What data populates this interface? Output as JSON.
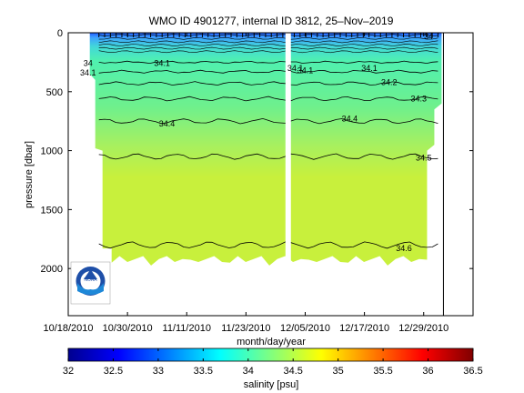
{
  "chart_data": {
    "type": "heatmap",
    "title": "WMO ID 4901277, internal ID 3812, 25–Nov–2019",
    "xlabel": "month/day/year",
    "ylabel": "pressure [dbar]",
    "x_ticks": [
      "10/18/2010",
      "10/30/2010",
      "11/11/2010",
      "11/23/2010",
      "12/05/2010",
      "12/17/2010",
      "12/29/2010"
    ],
    "xlim": [
      "10/18/2010",
      "01/08/2011"
    ],
    "y_ticks": [
      0,
      500,
      1000,
      1500,
      2000
    ],
    "ylim": [
      0,
      2400
    ],
    "y_reversed": true,
    "colorbar": {
      "label": "salinity [psu]",
      "ticks": [
        32,
        32.5,
        33,
        33.5,
        34,
        34.5,
        35,
        35.5,
        36,
        36.5
      ],
      "range": [
        32,
        36.5
      ],
      "colormap": "jet"
    },
    "data_gap": {
      "start": "12/01/2010",
      "end": "12/02/2010"
    },
    "profile_end_date": "01/02/2011",
    "contours": [
      {
        "label": "34",
        "pressure": 250
      },
      {
        "label": "34.1",
        "pressure": 330
      },
      {
        "label": "34.2",
        "pressure": 430
      },
      {
        "label": "34.3",
        "pressure": 560
      },
      {
        "label": "34.4",
        "pressure": 750
      },
      {
        "label": "34.5",
        "pressure": 1050
      },
      {
        "label": "34.6",
        "pressure": 1800
      }
    ],
    "contour_labels": [
      {
        "text": "34",
        "date": "10/22/2010",
        "pressure": 260
      },
      {
        "text": "34.1",
        "date": "10/22/2010",
        "pressure": 340
      },
      {
        "text": "34.1",
        "date": "11/06/2010",
        "pressure": 260
      },
      {
        "text": "34.1",
        "date": "12/03/2010",
        "pressure": 300
      },
      {
        "text": "34.1",
        "date": "12/05/2010",
        "pressure": 320
      },
      {
        "text": "34.1",
        "date": "12/18/2010",
        "pressure": 300
      },
      {
        "text": "34.2",
        "date": "12/22/2010",
        "pressure": 420
      },
      {
        "text": "34.3",
        "date": "12/28/2010",
        "pressure": 560
      },
      {
        "text": "34.4",
        "date": "11/07/2010",
        "pressure": 770
      },
      {
        "text": "34.4",
        "date": "12/14/2010",
        "pressure": 730
      },
      {
        "text": "34.5",
        "date": "12/29/2010",
        "pressure": 1060
      },
      {
        "text": "34.6",
        "date": "12/25/2010",
        "pressure": 1830
      },
      {
        "text": "34",
        "date": "12/30/2010",
        "pressure": 30
      }
    ],
    "logo": "NOAA"
  },
  "colors": {
    "surface_low": "#1f5bff",
    "surface_mid": "#3da0ff",
    "upper": "#4ff0b0",
    "mid": "#8ff07a",
    "deep": "#c8f03c",
    "background": "#ffffff"
  },
  "icons": {
    "logo": "noaa-logo-icon"
  }
}
